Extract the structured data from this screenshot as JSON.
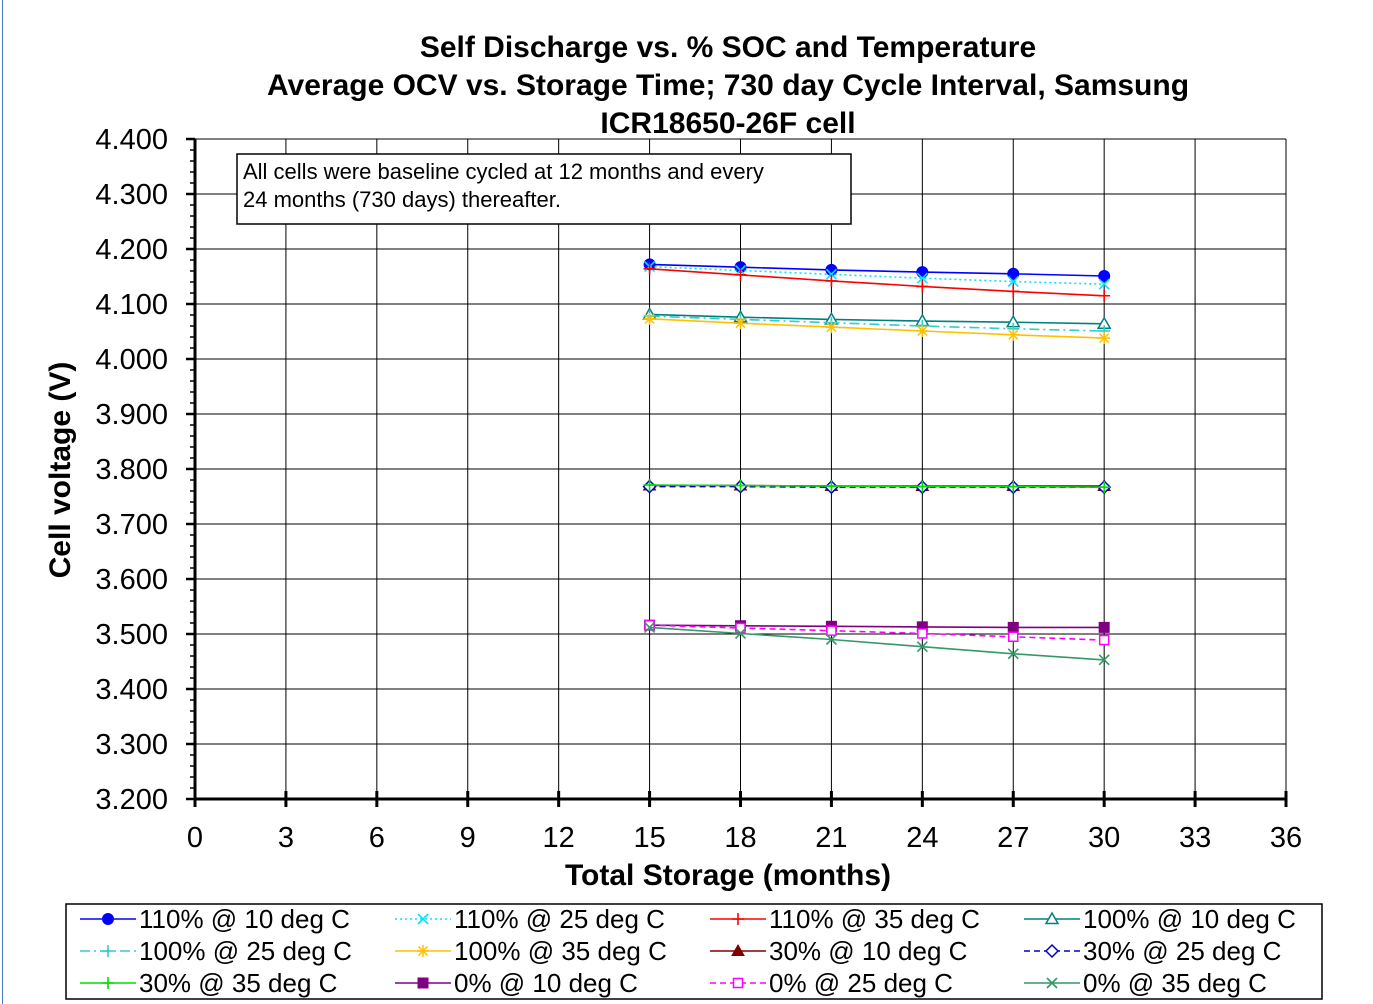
{
  "chart_data": {
    "type": "line",
    "title": [
      "Self Discharge vs. % SOC and Temperature",
      "Average OCV vs. Storage Time; 730 day Cycle Interval, Samsung",
      "ICR18650-26F  cell"
    ],
    "xlabel": "Total Storage (months)",
    "ylabel": "Cell voltage (V)",
    "xlim": [
      0,
      36
    ],
    "ylim": [
      3.2,
      4.4
    ],
    "x_ticks": [
      0,
      3,
      6,
      9,
      12,
      15,
      18,
      21,
      24,
      27,
      30,
      33,
      36
    ],
    "x_tick_labels": [
      "0",
      "3",
      "6",
      "9",
      "12",
      "15",
      "18",
      "21",
      "24",
      "27",
      "30",
      "33",
      "36"
    ],
    "y_ticks": [
      3.2,
      3.3,
      3.4,
      3.5,
      3.6,
      3.7,
      3.8,
      3.9,
      4.0,
      4.1,
      4.2,
      4.3,
      4.4
    ],
    "y_tick_labels": [
      "3.200",
      "3.300",
      "3.400",
      "3.500",
      "3.600",
      "3.700",
      "3.800",
      "3.900",
      "4.000",
      "4.100",
      "4.200",
      "4.300",
      "4.400"
    ],
    "grid": true,
    "legend_position": "bottom",
    "annotation": [
      "All cells were baseline cycled  at 12 months and every",
      "24 months (730 days) thereafter."
    ],
    "x": [
      15,
      18,
      21,
      24,
      27,
      30
    ],
    "series": [
      {
        "name": "110% @ 10 deg C",
        "color": "#0000ff",
        "marker": "circle",
        "dash": "solid",
        "values": [
          4.172,
          4.167,
          4.162,
          4.158,
          4.155,
          4.151
        ]
      },
      {
        "name": "110% @ 25 deg C",
        "color": "#00e5ff",
        "marker": "x",
        "dash": "dotted",
        "values": [
          4.168,
          4.161,
          4.154,
          4.147,
          4.141,
          4.136
        ]
      },
      {
        "name": "110% @ 35 deg C",
        "color": "#ff0000",
        "marker": "plus",
        "dash": "solid",
        "values": [
          4.164,
          4.153,
          4.142,
          4.132,
          4.123,
          4.115
        ]
      },
      {
        "name": "100% @ 10 deg C",
        "color": "#008080",
        "marker": "triangle-open",
        "dash": "solid",
        "values": [
          4.081,
          4.076,
          4.072,
          4.069,
          4.067,
          4.064
        ]
      },
      {
        "name": "100% @ 25 deg C",
        "color": "#33cccc",
        "marker": "plus",
        "dash": "dashdot",
        "values": [
          4.078,
          4.072,
          4.066,
          4.06,
          4.055,
          4.051
        ]
      },
      {
        "name": "100% @ 35 deg C",
        "color": "#ffc000",
        "marker": "star",
        "dash": "solid",
        "values": [
          4.073,
          4.065,
          4.058,
          4.051,
          4.044,
          4.038
        ]
      },
      {
        "name": "30% @ 10 deg C",
        "color": "#800000",
        "marker": "triangle",
        "dash": "solid",
        "values": [
          3.77,
          3.77,
          3.769,
          3.769,
          3.769,
          3.769
        ]
      },
      {
        "name": "30% @ 25 deg C",
        "color": "#0000cc",
        "marker": "diamond-open",
        "dash": "dashed",
        "values": [
          3.768,
          3.768,
          3.767,
          3.767,
          3.767,
          3.767
        ]
      },
      {
        "name": "30% @ 35 deg C",
        "color": "#00dd00",
        "marker": "plus",
        "dash": "solid",
        "values": [
          3.771,
          3.77,
          3.769,
          3.768,
          3.768,
          3.767
        ]
      },
      {
        "name": "0% @ 10 deg C",
        "color": "#800080",
        "marker": "square",
        "dash": "solid",
        "values": [
          3.516,
          3.515,
          3.514,
          3.513,
          3.512,
          3.512
        ]
      },
      {
        "name": "0% @ 25 deg C",
        "color": "#ff00ff",
        "marker": "square-open",
        "dash": "dashed",
        "values": [
          3.516,
          3.511,
          3.506,
          3.501,
          3.495,
          3.489
        ]
      },
      {
        "name": "0% @ 35 deg C",
        "color": "#339966",
        "marker": "x",
        "dash": "solid",
        "values": [
          3.512,
          3.501,
          3.49,
          3.477,
          3.464,
          3.453
        ]
      }
    ]
  }
}
